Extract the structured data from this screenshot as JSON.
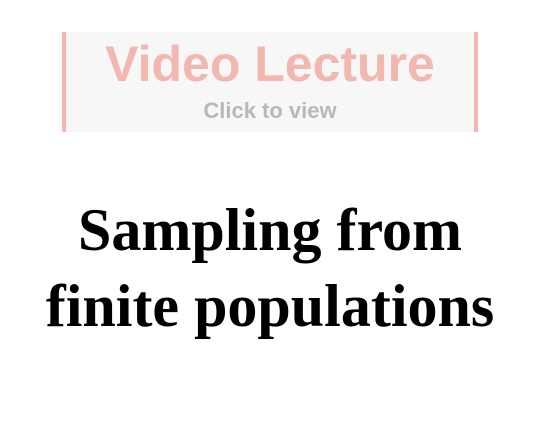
{
  "video_banner": {
    "title": "Video Lecture",
    "subtitle": "Click to view",
    "accent_color": "#f2b8b0",
    "background_color": "#f7f7f7"
  },
  "page_title": {
    "line1": "Sampling from",
    "line2": "finite populations"
  }
}
